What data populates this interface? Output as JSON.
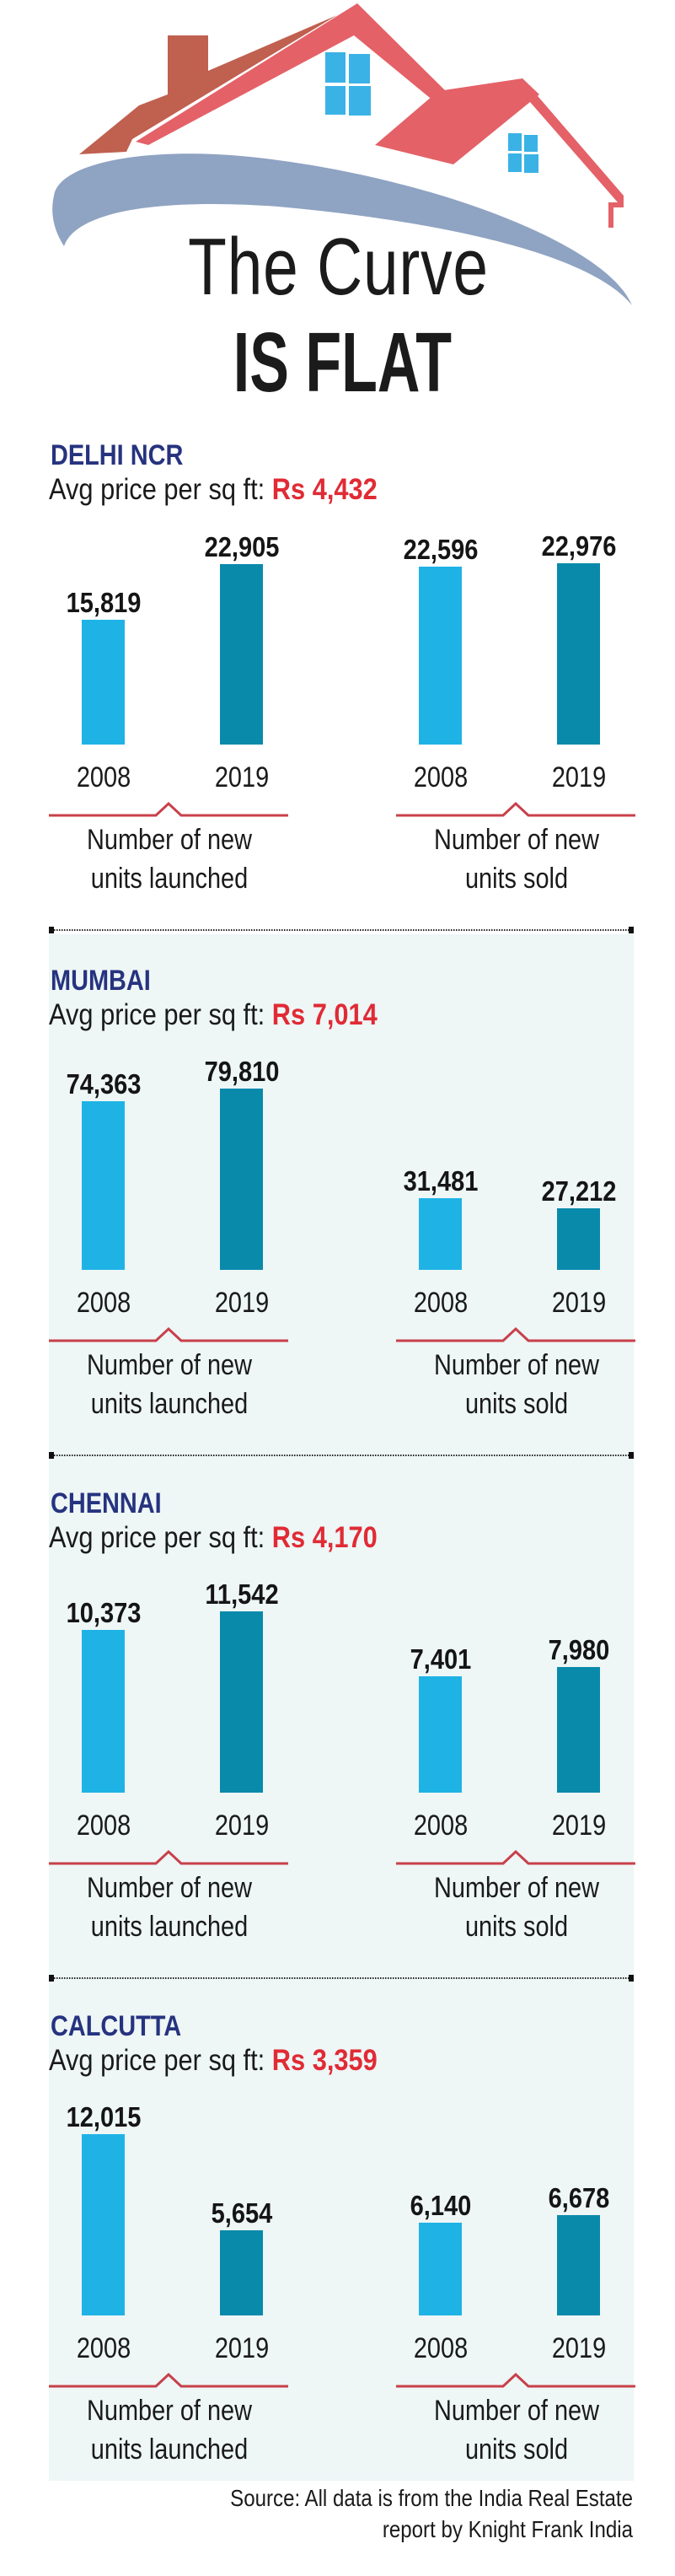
{
  "header": {
    "title_line1": "The Curve",
    "title_line2": "IS FLAT",
    "logo": "house-roof-swoosh-logo"
  },
  "colors": {
    "city_heading": "#26337f",
    "price_value": "#e02b35",
    "bar_2008": "#1fb3e5",
    "bar_2019": "#0a8aab",
    "bracket": "#c8404a",
    "panel_background": "#eef6f6"
  },
  "labels": {
    "price_prefix": "Avg price per sq ft: ",
    "year_a": "2008",
    "year_b": "2019",
    "launched_line1": "Number of new",
    "launched_line2": "units launched",
    "sold_line1": "Number of new",
    "sold_line2": "units sold"
  },
  "source": {
    "line1": "Source: All data is from the India Real Estate",
    "line2": "report by Knight Frank India"
  },
  "chart_data": {
    "type": "bar",
    "title": "The Curve IS FLAT",
    "categories": [
      "2008",
      "2019"
    ],
    "xlabel": "",
    "ylabel": "",
    "grid": false,
    "legend": "none",
    "cities": [
      {
        "name": "DELHI NCR",
        "avg_price": "Rs 4,432",
        "series": [
          {
            "name": "Number of new units launched",
            "values": [
              15819,
              22905
            ],
            "labels": [
              "15,819",
              "22,905"
            ]
          },
          {
            "name": "Number of new units sold",
            "values": [
              22596,
              22976
            ],
            "labels": [
              "22,596",
              "22,976"
            ]
          }
        ]
      },
      {
        "name": "MUMBAI",
        "avg_price": "Rs 7,014",
        "series": [
          {
            "name": "Number of new units launched",
            "values": [
              74363,
              79810
            ],
            "labels": [
              "74,363",
              "79,810"
            ]
          },
          {
            "name": "Number of new units sold",
            "values": [
              31481,
              27212
            ],
            "labels": [
              "31,481",
              "27,212"
            ]
          }
        ]
      },
      {
        "name": "CHENNAI",
        "avg_price": "Rs 4,170",
        "series": [
          {
            "name": "Number of new units launched",
            "values": [
              10373,
              11542
            ],
            "labels": [
              "10,373",
              "11,542"
            ]
          },
          {
            "name": "Number of new units sold",
            "values": [
              7401,
              7980
            ],
            "labels": [
              "7,401",
              "7,980"
            ]
          }
        ]
      },
      {
        "name": "CALCUTTA",
        "avg_price": "Rs 3,359",
        "series": [
          {
            "name": "Number of new units launched",
            "values": [
              12015,
              5654
            ],
            "labels": [
              "12,015",
              "5,654"
            ]
          },
          {
            "name": "Number of new units sold",
            "values": [
              6140,
              6678
            ],
            "labels": [
              "6,140",
              "6,678"
            ]
          }
        ]
      }
    ]
  }
}
